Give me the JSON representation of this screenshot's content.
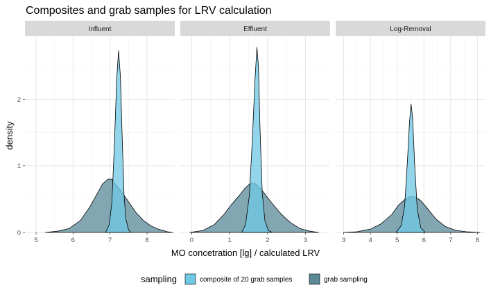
{
  "chart_data": {
    "type": "area",
    "title": "Composites and grab samples for LRV calculation",
    "xlabel": "MO concetration [lg] / calculated LRV",
    "ylabel": "density",
    "ylim": [
      0,
      2.95
    ],
    "y_ticks": [
      0,
      1,
      2
    ],
    "grid": true,
    "legend": {
      "title": "sampling",
      "position": "bottom",
      "entries": [
        {
          "name": "composite of 20 grab samples",
          "color": "#6fc8e4"
        },
        {
          "name": "grab sampling",
          "color": "#5a8a98"
        }
      ]
    },
    "facets": [
      {
        "label": "Influent",
        "xlim": [
          4.7,
          8.75
        ],
        "x_ticks": [
          5,
          6,
          7,
          8
        ],
        "series": [
          {
            "name": "grab sampling",
            "x": [
              5.25,
              5.6,
              5.9,
              6.2,
              6.45,
              6.65,
              6.8,
              6.95,
              7.05,
              7.15,
              7.3,
              7.5,
              7.7,
              7.9,
              8.1,
              8.3,
              8.55,
              8.7
            ],
            "y": [
              0.0,
              0.02,
              0.06,
              0.18,
              0.38,
              0.58,
              0.73,
              0.8,
              0.8,
              0.72,
              0.62,
              0.46,
              0.3,
              0.18,
              0.1,
              0.05,
              0.01,
              0.0
            ]
          },
          {
            "name": "composite of 20 grab samples",
            "x": [
              6.88,
              6.98,
              7.05,
              7.12,
              7.18,
              7.23,
              7.28,
              7.33,
              7.38,
              7.43,
              7.5,
              7.56
            ],
            "y": [
              0.0,
              0.12,
              0.45,
              1.35,
              2.3,
              2.73,
              2.35,
              1.4,
              0.55,
              0.2,
              0.04,
              0.0
            ]
          }
        ]
      },
      {
        "label": "Effluent",
        "xlim": [
          -0.3,
          3.65
        ],
        "x_ticks": [
          0,
          1,
          2,
          3
        ],
        "series": [
          {
            "name": "grab sampling",
            "x": [
              -0.05,
              0.3,
              0.6,
              0.85,
              1.05,
              1.25,
              1.4,
              1.55,
              1.65,
              1.75,
              1.9,
              2.1,
              2.35,
              2.6,
              2.85,
              3.1,
              3.35
            ],
            "y": [
              0.0,
              0.03,
              0.12,
              0.27,
              0.42,
              0.55,
              0.66,
              0.74,
              0.74,
              0.7,
              0.6,
              0.45,
              0.28,
              0.15,
              0.06,
              0.02,
              0.0
            ]
          },
          {
            "name": "composite of 20 grab samples",
            "x": [
              1.32,
              1.42,
              1.52,
              1.6,
              1.67,
              1.72,
              1.76,
              1.8,
              1.86,
              1.93,
              2.02,
              2.12
            ],
            "y": [
              0.0,
              0.12,
              0.55,
              1.4,
              2.3,
              2.78,
              2.5,
              1.6,
              0.6,
              0.18,
              0.03,
              0.0
            ]
          }
        ]
      },
      {
        "label": "Log-Removal",
        "xlim": [
          2.7,
          8.3
        ],
        "x_ticks": [
          3,
          4,
          5,
          6,
          7,
          8
        ],
        "series": [
          {
            "name": "grab sampling",
            "x": [
              3.0,
              3.5,
              4.0,
              4.4,
              4.8,
              5.05,
              5.3,
              5.5,
              5.7,
              5.9,
              6.15,
              6.45,
              6.8,
              7.2,
              7.6,
              8.1
            ],
            "y": [
              0.0,
              0.01,
              0.05,
              0.13,
              0.27,
              0.41,
              0.5,
              0.54,
              0.53,
              0.47,
              0.35,
              0.2,
              0.09,
              0.03,
              0.01,
              0.0
            ]
          },
          {
            "name": "composite of 20 grab samples",
            "x": [
              4.95,
              5.15,
              5.28,
              5.38,
              5.46,
              5.52,
              5.58,
              5.65,
              5.75,
              5.88,
              6.05
            ],
            "y": [
              0.0,
              0.1,
              0.4,
              1.05,
              1.65,
              1.93,
              1.7,
              1.05,
              0.35,
              0.07,
              0.0
            ]
          }
        ]
      }
    ]
  }
}
